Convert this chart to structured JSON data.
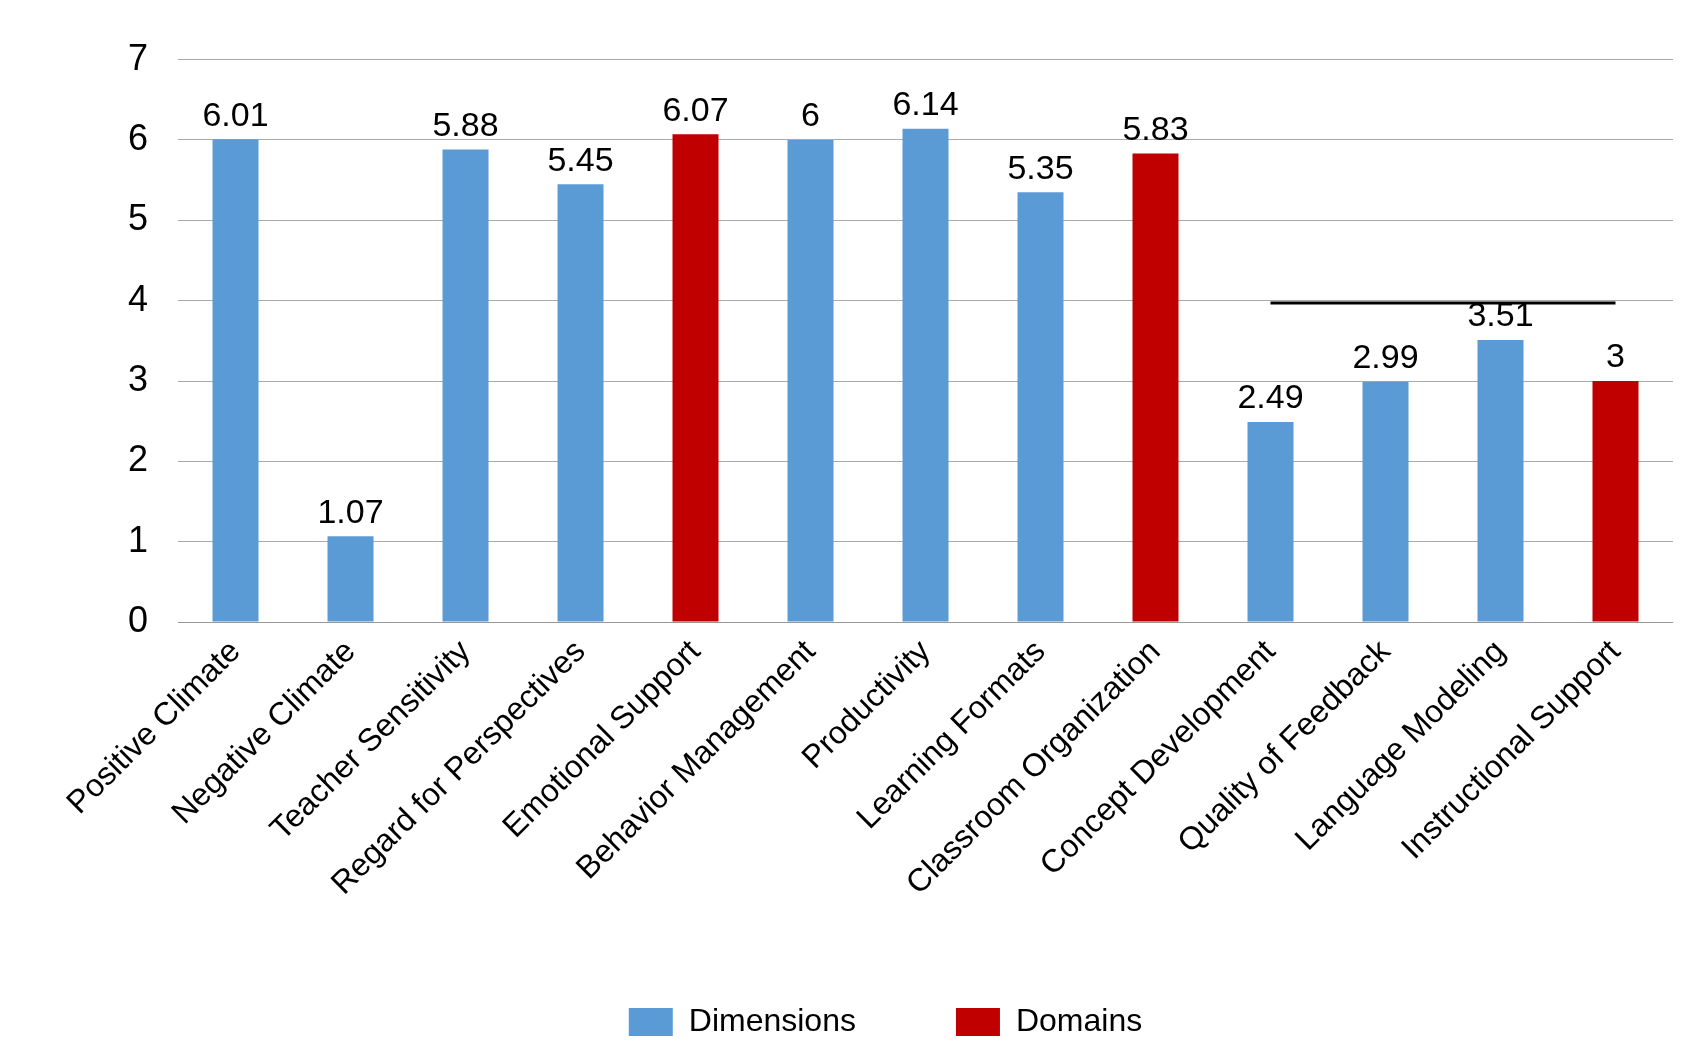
{
  "chart_data": {
    "type": "bar",
    "categories": [
      "Positive Climate",
      "Negative Climate",
      "Teacher Sensitivity",
      "Regard for Perspectives",
      "Emotional Support",
      "Behavior Management",
      "Productivity",
      "Learning Formats",
      "Classroom Organization",
      "Concept Development",
      "Quality of Feedback",
      "Language Modeling",
      "Instructional Support"
    ],
    "series": [
      {
        "name": "Dimensions",
        "color": "#5b9bd5",
        "values": [
          6.01,
          1.07,
          5.88,
          5.45,
          null,
          6,
          6.14,
          5.35,
          null,
          2.49,
          2.99,
          3.51,
          null
        ],
        "value_labels": [
          "6.01",
          "1.07",
          "5.88",
          "5.45",
          null,
          "6",
          "6.14",
          "5.35",
          null,
          "2.49",
          "2.99",
          "3.51",
          null
        ]
      },
      {
        "name": "Domains",
        "color": "#c00000",
        "values": [
          null,
          null,
          null,
          null,
          6.07,
          null,
          null,
          null,
          5.83,
          null,
          null,
          null,
          3
        ],
        "value_labels": [
          null,
          null,
          null,
          null,
          "6.07",
          null,
          null,
          null,
          "5.83",
          null,
          null,
          null,
          "3"
        ]
      },
      {
        "type": "line",
        "color": "#000000",
        "values": [
          null,
          null,
          null,
          null,
          null,
          null,
          null,
          null,
          null,
          3.97,
          3.97,
          3.97,
          3.97
        ]
      }
    ],
    "ylim": [
      0,
      7
    ],
    "yticks": [
      0,
      1,
      2,
      3,
      4,
      5,
      6,
      7
    ],
    "grid": "y",
    "legend": "bottom",
    "marker": "none"
  }
}
